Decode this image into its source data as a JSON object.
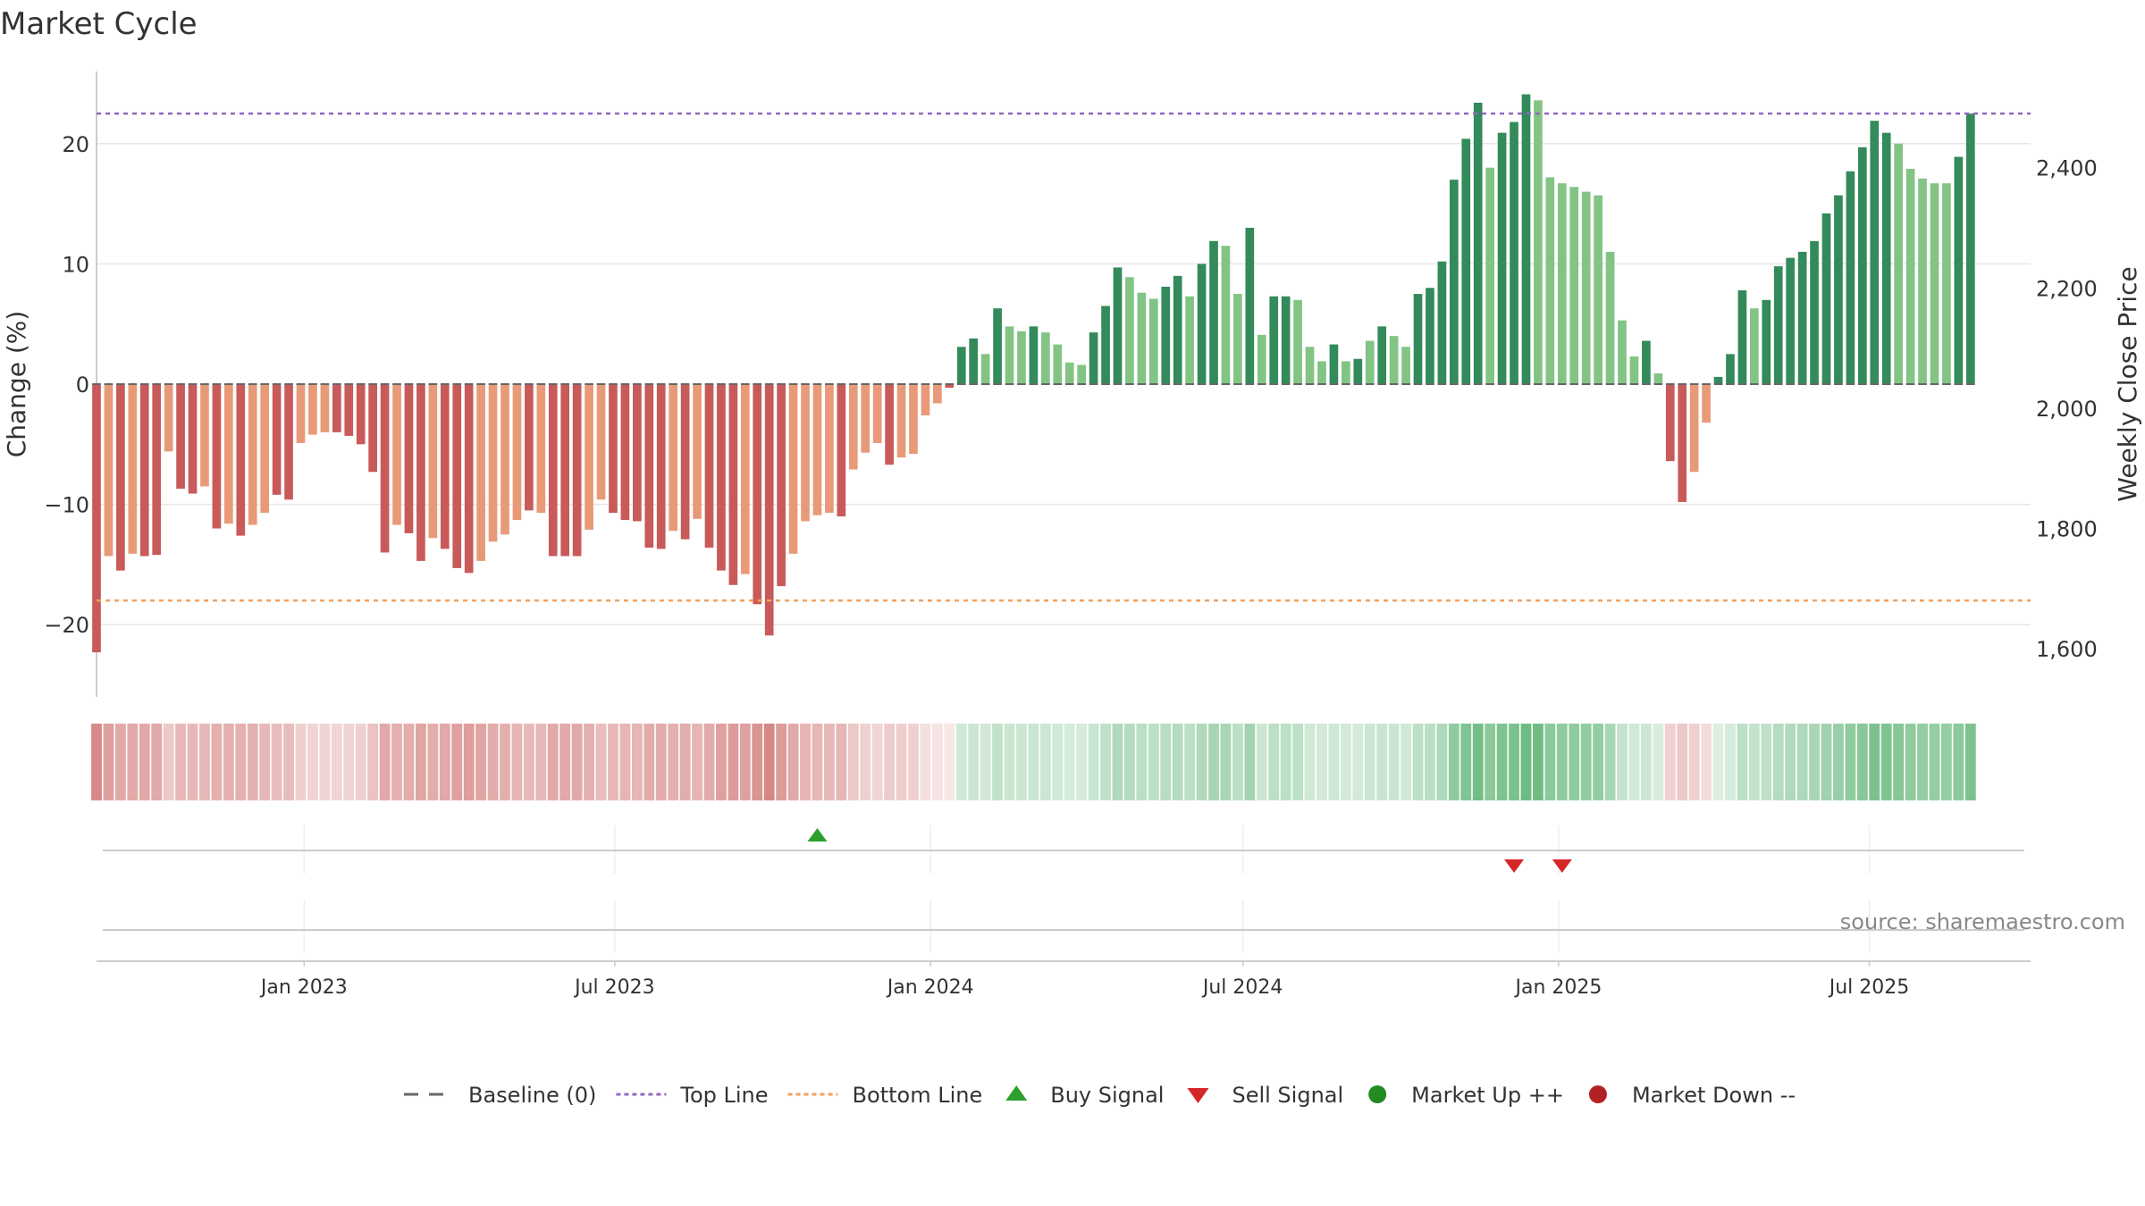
{
  "title": "Market Cycle",
  "source": "source: sharemaestro.com",
  "chart_data": {
    "type": "bar",
    "title": "Market Cycle",
    "ylabel": "Change (%)",
    "y2label": "Weekly Close Price",
    "ylim": [
      -26,
      26
    ],
    "y2lim": [
      1520,
      2560
    ],
    "yticks": [
      20,
      10,
      0,
      -10,
      -20
    ],
    "ytick_labels": [
      "20",
      "10",
      "0",
      "−10",
      "−20"
    ],
    "y2ticks": [
      2400,
      2200,
      2000,
      1800,
      1600
    ],
    "y2tick_labels": [
      "2,400",
      "2,200",
      "2,000",
      "1,800",
      "1,600"
    ],
    "x_range": [
      "2022-09-02",
      "2025-10-03"
    ],
    "xticks": [
      "2023-01-01",
      "2023-07-01",
      "2024-01-01",
      "2024-07-01",
      "2025-01-01",
      "2025-07-01"
    ],
    "xtick_labels": [
      "Jan 2023",
      "Jul 2023",
      "Jan 2024",
      "Jul 2024",
      "Jan 2025",
      "Jul 2025"
    ],
    "start_date": "2022-09-02",
    "top_line": 22.5,
    "bottom_line": -18,
    "baseline": 0,
    "grid": true,
    "legend_position": "bottom",
    "legend": [
      {
        "label": "Baseline (0)",
        "kind": "dash",
        "color": "#666666"
      },
      {
        "label": "Top Line",
        "kind": "dotted",
        "color": "#9467bd"
      },
      {
        "label": "Bottom Line",
        "kind": "dotted",
        "color": "#f0a060"
      },
      {
        "label": "Buy Signal",
        "kind": "triangle-up",
        "color": "#2ca02c"
      },
      {
        "label": "Sell Signal",
        "kind": "triangle-down",
        "color": "#d62728"
      },
      {
        "label": "Market Up ++",
        "kind": "circle",
        "color": "#228b22"
      },
      {
        "label": "Market Down --",
        "kind": "circle",
        "color": "#b22222"
      }
    ],
    "colors": {
      "neg_strong": "#c95a5a",
      "neg_weak": "#e89a78",
      "pos_strong": "#338a5a",
      "pos_weak": "#82c484",
      "heat_red": "#c9625f",
      "heat_green": "#3fa55a"
    },
    "values": [
      -22.3,
      -14.3,
      -15.5,
      -14.1,
      -14.3,
      -14.2,
      -5.6,
      -8.7,
      -9.1,
      -8.5,
      -12.0,
      -11.6,
      -12.6,
      -11.7,
      -10.7,
      -9.2,
      -9.6,
      -4.9,
      -4.2,
      -4.0,
      -4.0,
      -4.3,
      -5.0,
      -7.3,
      -14.0,
      -11.7,
      -12.4,
      -14.7,
      -12.8,
      -13.7,
      -15.3,
      -15.7,
      -14.7,
      -13.1,
      -12.5,
      -11.3,
      -10.5,
      -10.7,
      -14.3,
      -14.3,
      -14.3,
      -12.1,
      -9.6,
      -10.7,
      -11.3,
      -11.4,
      -13.6,
      -13.7,
      -12.2,
      -12.9,
      -11.2,
      -13.6,
      -15.5,
      -16.7,
      -15.8,
      -18.3,
      -20.9,
      -16.8,
      -14.1,
      -11.4,
      -10.9,
      -10.7,
      -11.0,
      -7.1,
      -5.7,
      -4.9,
      -6.7,
      -6.1,
      -5.8,
      -2.6,
      -1.6,
      -0.3,
      3.1,
      3.8,
      2.5,
      6.3,
      4.8,
      4.4,
      4.8,
      4.3,
      3.3,
      1.8,
      1.6,
      4.3,
      6.5,
      9.7,
      8.9,
      7.6,
      7.1,
      8.1,
      9.0,
      7.3,
      10.0,
      11.9,
      11.5,
      7.5,
      13.0,
      4.1,
      7.3,
      7.3,
      7.0,
      3.1,
      1.9,
      3.3,
      1.9,
      2.1,
      3.6,
      4.8,
      4.0,
      3.1,
      7.5,
      8.0,
      10.2,
      17.0,
      20.4,
      23.4,
      18.0,
      20.9,
      21.8,
      24.1,
      23.6,
      17.2,
      16.7,
      16.4,
      16.0,
      15.7,
      11.0,
      5.3,
      2.3,
      3.6,
      0.9,
      -6.4,
      -9.8,
      -7.3,
      -3.2,
      0.6,
      2.5,
      7.8,
      6.3,
      7.0,
      9.8,
      10.5,
      11.0,
      11.9,
      14.2,
      15.7,
      17.7,
      19.7,
      21.9,
      20.9,
      20.0,
      17.9,
      17.1,
      16.7,
      16.7,
      18.9,
      22.5
    ],
    "heat_intensity": [
      0.75,
      0.6,
      0.55,
      0.55,
      0.55,
      0.55,
      0.35,
      0.45,
      0.45,
      0.45,
      0.5,
      0.5,
      0.5,
      0.5,
      0.45,
      0.42,
      0.42,
      0.3,
      0.28,
      0.27,
      0.27,
      0.28,
      0.3,
      0.38,
      0.55,
      0.5,
      0.52,
      0.57,
      0.52,
      0.55,
      0.6,
      0.62,
      0.58,
      0.53,
      0.51,
      0.47,
      0.44,
      0.45,
      0.55,
      0.55,
      0.55,
      0.5,
      0.42,
      0.45,
      0.47,
      0.47,
      0.53,
      0.53,
      0.5,
      0.52,
      0.47,
      0.53,
      0.6,
      0.63,
      0.6,
      0.68,
      0.76,
      0.63,
      0.55,
      0.47,
      0.46,
      0.45,
      0.46,
      0.35,
      0.3,
      0.27,
      0.33,
      0.31,
      0.3,
      0.2,
      0.17,
      0.15,
      0.25,
      0.27,
      0.24,
      0.32,
      0.28,
      0.27,
      0.28,
      0.27,
      0.25,
      0.22,
      0.22,
      0.28,
      0.33,
      0.41,
      0.39,
      0.36,
      0.35,
      0.37,
      0.39,
      0.35,
      0.41,
      0.46,
      0.45,
      0.35,
      0.48,
      0.27,
      0.35,
      0.35,
      0.34,
      0.25,
      0.23,
      0.26,
      0.23,
      0.23,
      0.27,
      0.29,
      0.28,
      0.25,
      0.35,
      0.36,
      0.42,
      0.58,
      0.66,
      0.73,
      0.6,
      0.67,
      0.69,
      0.75,
      0.74,
      0.6,
      0.58,
      0.58,
      0.57,
      0.56,
      0.45,
      0.31,
      0.24,
      0.27,
      0.2,
      0.3,
      0.35,
      0.3,
      0.22,
      0.18,
      0.22,
      0.35,
      0.31,
      0.33,
      0.39,
      0.41,
      0.42,
      0.45,
      0.5,
      0.53,
      0.58,
      0.62,
      0.68,
      0.66,
      0.63,
      0.58,
      0.56,
      0.55,
      0.55,
      0.6,
      0.68
    ],
    "bar_styles": [
      "s",
      "w",
      "s",
      "w",
      "s",
      "s",
      "w",
      "s",
      "s",
      "w",
      "s",
      "w",
      "s",
      "w",
      "w",
      "s",
      "s",
      "w",
      "w",
      "w",
      "s",
      "s",
      "s",
      "s",
      "s",
      "w",
      "s",
      "s",
      "w",
      "s",
      "s",
      "s",
      "w",
      "w",
      "w",
      "w",
      "s",
      "w",
      "s",
      "s",
      "s",
      "w",
      "w",
      "s",
      "s",
      "s",
      "s",
      "s",
      "w",
      "s",
      "w",
      "s",
      "s",
      "s",
      "w",
      "s",
      "s",
      "s",
      "w",
      "w",
      "w",
      "w",
      "s",
      "w",
      "w",
      "w",
      "s",
      "w",
      "w",
      "w",
      "w",
      "s",
      "s",
      "s",
      "w",
      "s",
      "w",
      "w",
      "s",
      "w",
      "w",
      "w",
      "w",
      "s",
      "s",
      "s",
      "w",
      "w",
      "w",
      "s",
      "s",
      "w",
      "s",
      "s",
      "w",
      "w",
      "s",
      "w",
      "s",
      "s",
      "w",
      "w",
      "w",
      "s",
      "w",
      "s",
      "w",
      "s",
      "w",
      "w",
      "s",
      "s",
      "s",
      "s",
      "s",
      "s",
      "w",
      "s",
      "s",
      "s",
      "w",
      "w",
      "w",
      "w",
      "w",
      "w",
      "w",
      "w",
      "w",
      "s",
      "w",
      "s",
      "s",
      "w",
      "w",
      "s",
      "s",
      "s",
      "w",
      "s",
      "s",
      "s",
      "s",
      "s",
      "s",
      "s",
      "s",
      "s",
      "s",
      "s",
      "w",
      "w",
      "w",
      "w",
      "w",
      "s",
      "s",
      "s"
    ],
    "buy_signals": [
      "2023-10-27"
    ],
    "sell_signals": [
      "2024-12-06",
      "2025-01-03"
    ]
  }
}
